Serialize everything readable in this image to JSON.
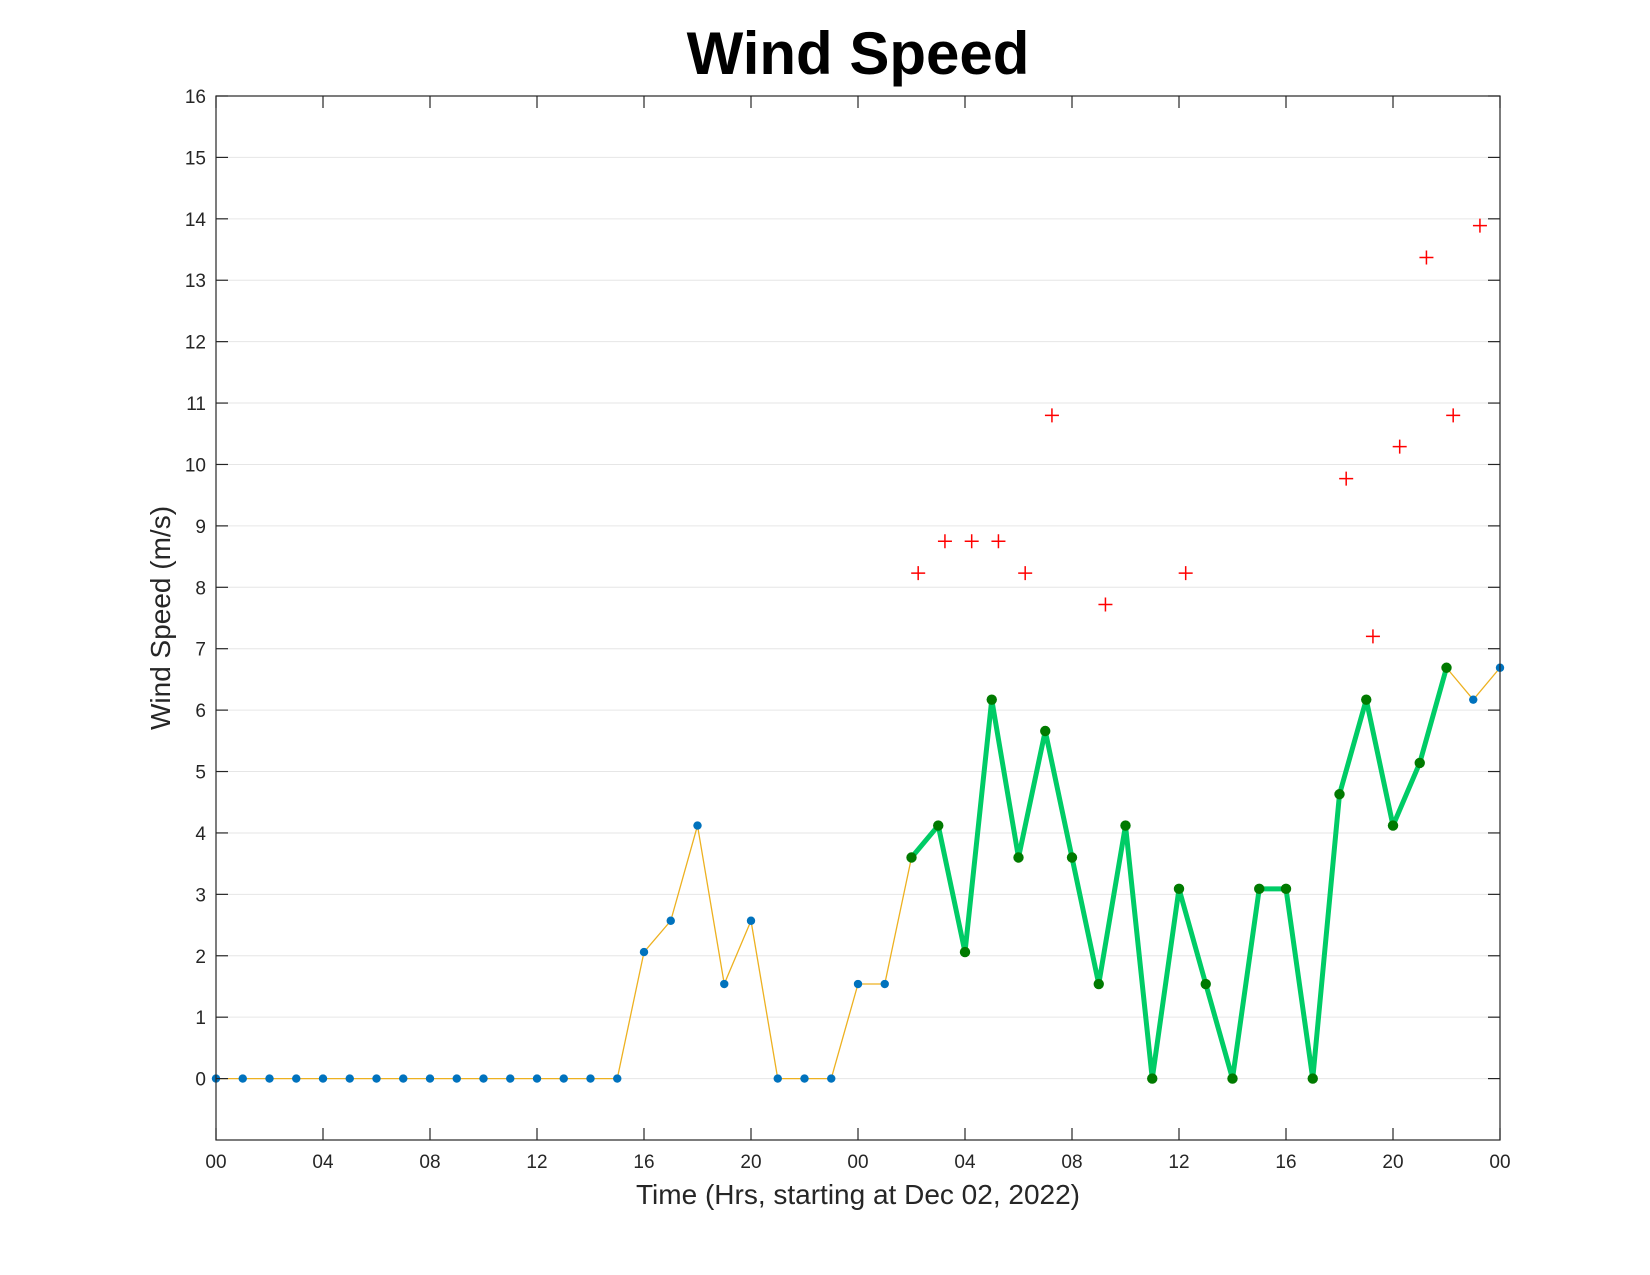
{
  "chart_data": {
    "type": "line",
    "title": "Wind Speed",
    "xlabel": "Time (Hrs, starting at Dec 02, 2022)",
    "ylabel": "Wind Speed (m/s)",
    "xlim": [
      0,
      48
    ],
    "ylim": [
      -1,
      16
    ],
    "grid": "horizontal",
    "x_ticks": [
      0,
      4,
      8,
      12,
      16,
      20,
      24,
      28,
      32,
      36,
      40,
      44,
      48
    ],
    "x_tick_labels": [
      "00",
      "04",
      "08",
      "12",
      "16",
      "20",
      "00",
      "04",
      "08",
      "12",
      "16",
      "20",
      "00"
    ],
    "y_ticks": [
      0,
      1,
      2,
      3,
      4,
      5,
      6,
      7,
      8,
      9,
      10,
      11,
      12,
      13,
      14,
      15,
      16
    ],
    "y_tick_labels": [
      "0",
      "1",
      "2",
      "3",
      "4",
      "5",
      "6",
      "7",
      "8",
      "9",
      "10",
      "11",
      "12",
      "13",
      "14",
      "15",
      "16"
    ],
    "colors": {
      "all_line": "#EDB120",
      "all_marker": "#0072BD",
      "highlight_line": "#00CC66",
      "highlight_marker": "#007A00",
      "gust_marker": "#FF0000",
      "grid": "#E6E6E6",
      "axis": "#262626"
    },
    "series": [
      {
        "style": "thin-line-dots",
        "x": [
          0,
          1,
          2,
          3,
          4,
          5,
          6,
          7,
          8,
          9,
          10,
          11,
          12,
          13,
          14,
          15,
          16,
          17,
          18,
          19,
          20,
          21,
          22,
          23,
          24,
          25,
          26,
          27,
          28,
          29,
          30,
          31,
          32,
          33,
          34,
          35,
          36,
          37,
          38,
          39,
          40,
          41,
          42,
          43,
          44,
          45,
          46,
          47,
          48
        ],
        "y": [
          0,
          0,
          0,
          0,
          0,
          0,
          0,
          0,
          0,
          0,
          0,
          0,
          0,
          0,
          0,
          0,
          2.06,
          2.57,
          4.12,
          1.54,
          2.57,
          0,
          0,
          0,
          1.54,
          1.54,
          3.6,
          4.12,
          2.06,
          6.17,
          3.6,
          5.66,
          3.6,
          1.54,
          4.12,
          0,
          3.09,
          1.54,
          0,
          3.09,
          3.09,
          0,
          4.63,
          6.17,
          4.12,
          5.14,
          6.69,
          6.17,
          6.69
        ]
      },
      {
        "style": "thick-line-dots",
        "x": [
          26,
          27,
          28,
          29,
          30,
          31,
          32,
          33,
          34,
          35,
          36,
          37,
          38,
          39,
          40,
          41,
          42,
          43,
          44,
          45,
          46
        ],
        "y": [
          3.6,
          4.12,
          2.06,
          6.17,
          3.6,
          5.66,
          3.6,
          1.54,
          4.12,
          0,
          3.09,
          1.54,
          0,
          3.09,
          3.09,
          0,
          4.63,
          6.17,
          4.12,
          5.14,
          6.69
        ]
      },
      {
        "style": "plus-markers",
        "x": [
          26.25,
          27.25,
          28.25,
          29.25,
          30.25,
          31.25,
          33.25,
          36.25,
          42.25,
          43.25,
          44.25,
          45.25,
          46.25,
          47.25
        ],
        "y": [
          8.23,
          8.75,
          8.75,
          8.75,
          8.23,
          10.8,
          7.72,
          8.23,
          9.77,
          7.2,
          10.29,
          13.37,
          10.8,
          13.89
        ]
      }
    ]
  }
}
